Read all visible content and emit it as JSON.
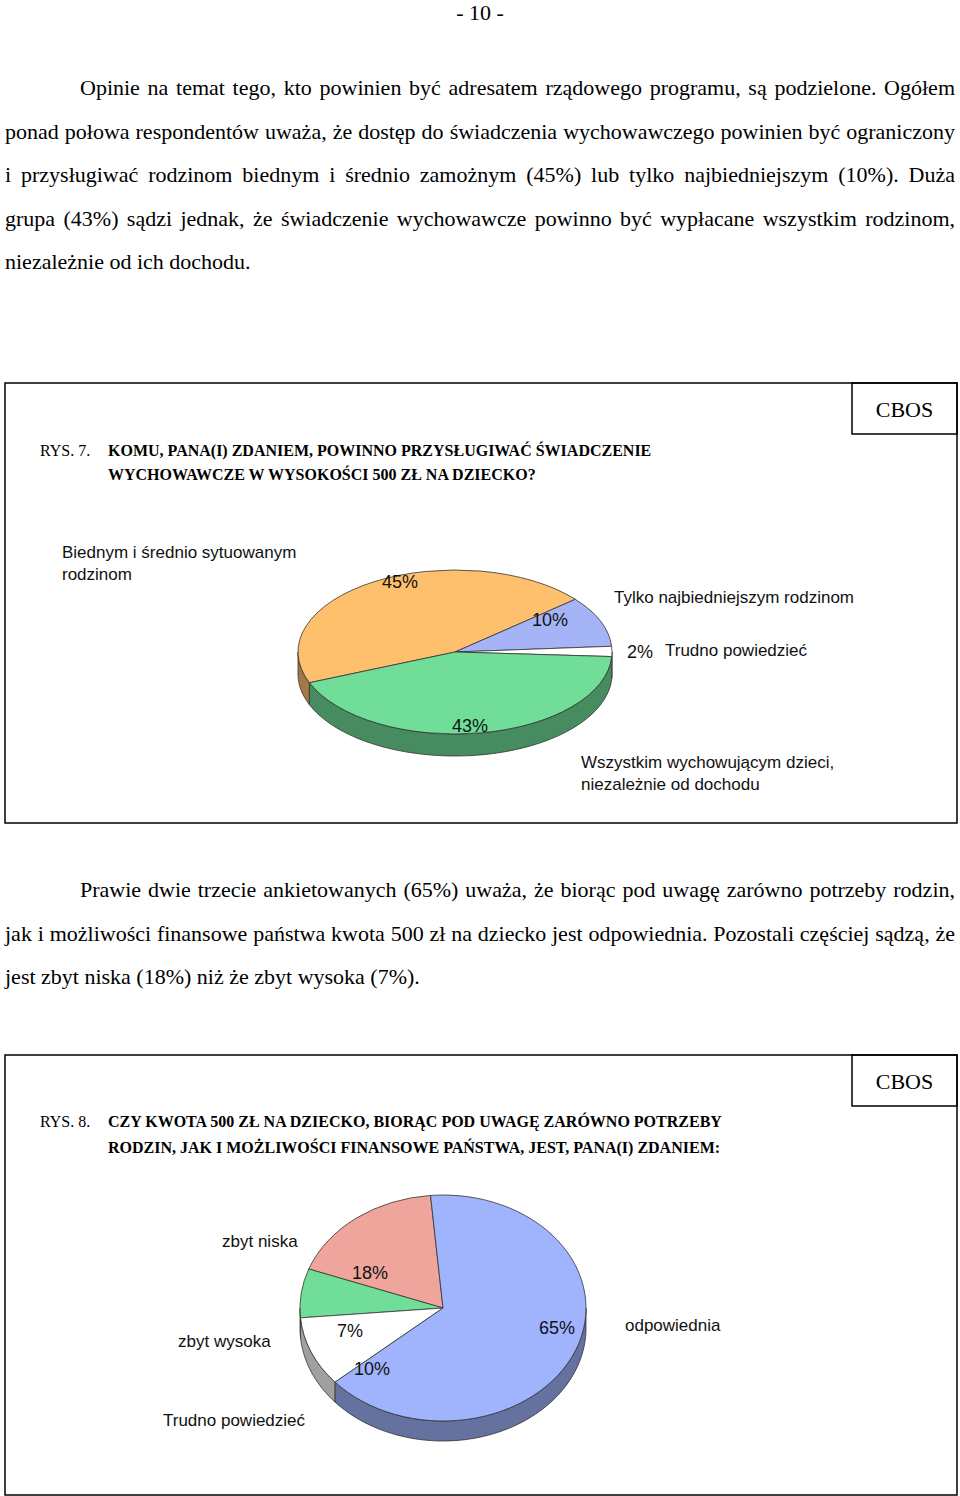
{
  "page_number": "- 10 -",
  "paragraphs": [
    "Opinie na temat tego, kto powinien być adresatem rządowego programu, są podzielone. Ogółem ponad połowa respondentów uważa, że dostęp do świadczenia wychowawczego powinien być ograniczony i przysługiwać rodzinom biednym i średnio zamożnym (45%) lub tylko najbiedniejszym (10%). Duża grupa (43%) sądzi jednak, że świadczenie wychowawcze powinno być wypłacane wszystkim rodzinom, niezależnie od ich dochodu.",
    "Prawie dwie trzecie ankietowanych (65%) uważa, że biorąc pod uwagę zarówno potrzeby rodzin, jak i możliwości finansowe państwa kwota 500 zł na dziecko jest odpowiednia. Pozostali częściej sądzą, że jest zbyt niska (18%) niż że zbyt wysoka (7%)."
  ],
  "chart_data": [
    {
      "type": "pie",
      "title": "KOMU, PANA(I) ZDANIEM, POWINNO PRZYSŁUGIWAĆ ŚWIADCZENIE\nWYCHOWAWCZE W WYSOKOŚCI 500 ZŁ NA DZIECKO?",
      "annotations": [
        "RYS. 7.",
        "CBOS"
      ],
      "categories": [
        "Biednym i średnio sytuowanym\nrodzinom",
        "Tylko najbiedniejszym rodzinom",
        "Trudno powiedzieć",
        "Wszystkim wychowującym dzieci,\nniezależnie od dochodu"
      ],
      "values": [
        45,
        10,
        2,
        43
      ],
      "value_labels": [
        "45%",
        "10%",
        "2%",
        "43%"
      ],
      "colors": [
        "#ffc06e",
        "#a4b4f7",
        "#ffffff",
        "#70de98"
      ],
      "data_labels": true
    },
    {
      "type": "pie",
      "title": "CZY KWOTA 500 ZŁ NA DZIECKO, BIORĄC POD UWAGĘ ZARÓWNO POTRZEBY\nRODZIN, JAK I MOŻLIWOŚCI FINANSOWE PAŃSTWA, JEST, PANA(I) ZDANIEM:",
      "annotations": [
        "RYS. 8.",
        "CBOS"
      ],
      "categories": [
        "zbyt niska",
        "zbyt wysoka",
        "Trudno powiedzieć",
        "odpowiednia"
      ],
      "values": [
        18,
        7,
        10,
        65
      ],
      "value_labels": [
        "18%",
        "7%",
        "10%",
        "65%"
      ],
      "colors": [
        "#f0a59c",
        "#70de98",
        "#ffffff",
        "#a0b4fd"
      ],
      "data_labels": true
    }
  ]
}
